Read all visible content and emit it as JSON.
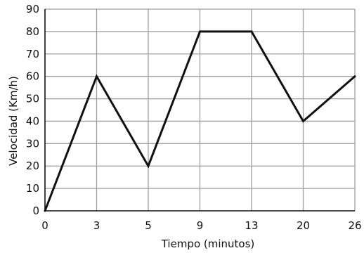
{
  "chart_data": {
    "type": "line",
    "title": "",
    "xlabel": "Tiempo (minutos)",
    "ylabel": "Velocidad (Km/h)",
    "x_tick_labels": [
      "0",
      "3",
      "5",
      "9",
      "13",
      "20",
      "26"
    ],
    "x_scale": "categorical",
    "ylim": [
      0,
      90
    ],
    "y_ticks": [
      0,
      10,
      20,
      30,
      40,
      50,
      60,
      70,
      80,
      90
    ],
    "y_tick_labels": [
      "0",
      "10",
      "20",
      "30",
      "40",
      "50",
      "60",
      "70",
      "80",
      "90"
    ],
    "grid": true,
    "legend": "none",
    "series": [
      {
        "x": [
          0,
          3,
          5,
          9,
          13,
          20,
          26
        ],
        "y": [
          0,
          60,
          20,
          80,
          80,
          40,
          60
        ],
        "color": "#111111"
      }
    ]
  }
}
